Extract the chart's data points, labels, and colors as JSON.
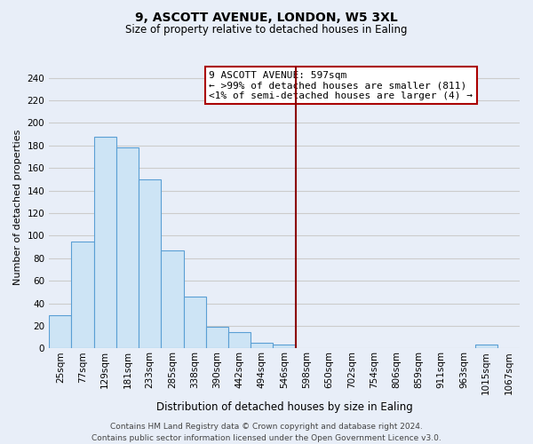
{
  "title": "9, ASCOTT AVENUE, LONDON, W5 3XL",
  "subtitle": "Size of property relative to detached houses in Ealing",
  "xlabel": "Distribution of detached houses by size in Ealing",
  "ylabel": "Number of detached properties",
  "bin_labels": [
    "25sqm",
    "77sqm",
    "129sqm",
    "181sqm",
    "233sqm",
    "285sqm",
    "338sqm",
    "390sqm",
    "442sqm",
    "494sqm",
    "546sqm",
    "598sqm",
    "650sqm",
    "702sqm",
    "754sqm",
    "806sqm",
    "859sqm",
    "911sqm",
    "963sqm",
    "1015sqm",
    "1067sqm"
  ],
  "bar_heights": [
    29,
    95,
    188,
    178,
    150,
    87,
    46,
    19,
    14,
    5,
    3,
    0,
    0,
    0,
    0,
    0,
    0,
    0,
    0,
    3,
    0
  ],
  "bar_color": "#cde4f5",
  "bar_edge_color": "#5a9fd4",
  "vline_color": "#8b0000",
  "annotation_text": "9 ASCOTT AVENUE: 597sqm\n← >99% of detached houses are smaller (811)\n<1% of semi-detached houses are larger (4) →",
  "annotation_box_edge": "#aa0000",
  "ylim": [
    0,
    250
  ],
  "yticks": [
    0,
    20,
    40,
    60,
    80,
    100,
    120,
    140,
    160,
    180,
    200,
    220,
    240
  ],
  "grid_color": "#cccccc",
  "bg_color": "#e8eef8",
  "footer": "Contains HM Land Registry data © Crown copyright and database right 2024.\nContains public sector information licensed under the Open Government Licence v3.0.",
  "title_fontsize": 10,
  "subtitle_fontsize": 8.5,
  "ylabel_fontsize": 8,
  "xlabel_fontsize": 8.5,
  "tick_fontsize": 7.5,
  "annotation_fontsize": 8,
  "footer_fontsize": 6.5
}
